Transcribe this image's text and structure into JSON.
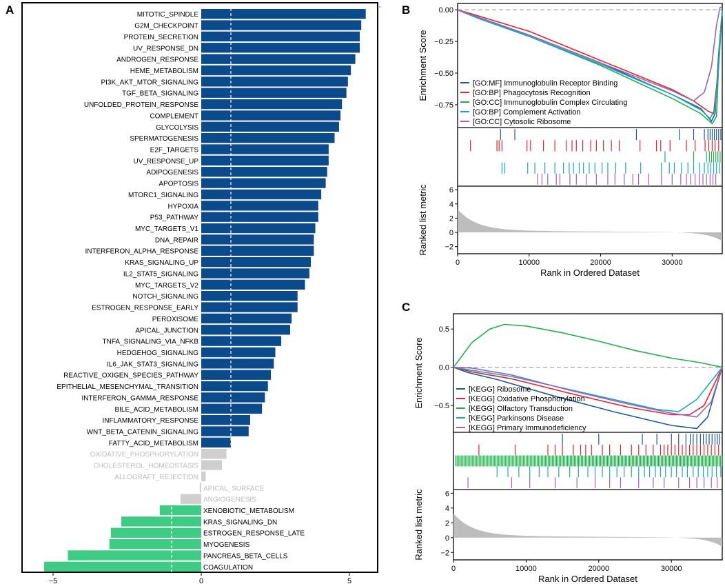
{
  "panels": {
    "a": "A",
    "b": "B",
    "c": "C"
  },
  "colors": {
    "up": "#0b4a8b",
    "down": "#3ecb83",
    "ns": "#cfcfcf",
    "ns_text": "#bdbdbd",
    "metric": "#bdbdbd"
  },
  "chart_data": [
    {
      "type": "bar",
      "id": "A",
      "orientation": "horizontal",
      "xlim": [
        -5.5,
        6
      ],
      "xticks": [
        -5,
        0,
        5
      ],
      "threshold_lines": [
        -1,
        1
      ],
      "categories": [
        "MITOTIC_SPINDLE",
        "G2M_CHECKPOINT",
        "PROTEIN_SECRETION",
        "UV_RESPONSE_DN",
        "ANDROGEN_RESPONSE",
        "HEME_METABOLISM",
        "PI3K_AKT_MTOR_SIGNALING",
        "TGF_BETA_SIGNALING",
        "UNFOLDED_PROTEIN_RESPONSE",
        "COMPLEMENT",
        "GLYCOLYSIS",
        "SPERMATOGENESIS",
        "E2F_TARGETS",
        "UV_RESPONSE_UP",
        "ADIPOGENESIS",
        "APOPTOSIS",
        "MTORC1_SIGNALING",
        "HYPOXIA",
        "P53_PATHWAY",
        "MYC_TARGETS_V1",
        "DNA_REPAIR",
        "INTERFERON_ALPHA_RESPONSE",
        "KRAS_SIGNALING_UP",
        "IL2_STAT5_SIGNALING",
        "MYC_TARGETS_V2",
        "NOTCH_SIGNALING",
        "ESTROGEN_RESPONSE_EARLY",
        "PEROXISOME",
        "APICAL_JUNCTION",
        "TNFA_SIGNALING_VIA_NFKB",
        "HEDGEHOG_SIGNALING",
        "IL6_JAK_STAT3_SIGNALING",
        "REACTIVE_OXIGEN_SPECIES_PATHWAY",
        "EPITHELIAL_MESENCHYMAL_TRANSITION",
        "INTERFERON_GAMMA_RESPONSE",
        "BILE_ACID_METABOLISM",
        "INFLAMMATORY_RESPONSE",
        "WNT_BETA_CATENIN_SIGNALING",
        "FATTY_ACID_METABOLISM",
        "OXIDATIVE_PHOSPHORYLATION",
        "CHOLESTEROL_HOMEOSTASIS",
        "ALLOGRAFT_REJECTION",
        "APICAL_SURFACE",
        "ANGIOGENESIS",
        "XENOBIOTIC_METABOLISM",
        "KRAS_SIGNALING_DN",
        "ESTROGEN_RESPONSE_LATE",
        "MYOGENESIS",
        "PANCREAS_BETA_CELLS",
        "COAGULATION"
      ],
      "values": [
        5.55,
        5.4,
        5.35,
        5.35,
        5.2,
        5.05,
        4.95,
        4.9,
        4.75,
        4.7,
        4.65,
        4.5,
        4.3,
        4.3,
        4.25,
        4.2,
        4.05,
        3.95,
        3.95,
        3.85,
        3.8,
        3.8,
        3.7,
        3.65,
        3.5,
        3.25,
        3.25,
        3.05,
        3.0,
        2.7,
        2.5,
        2.45,
        2.35,
        2.25,
        2.15,
        2.05,
        1.65,
        1.6,
        1.0,
        0.85,
        0.7,
        0.15,
        -0.05,
        -0.7,
        -1.4,
        -2.7,
        -3.05,
        -3.1,
        -4.5,
        -5.3
      ],
      "groups": [
        "up",
        "up",
        "up",
        "up",
        "up",
        "up",
        "up",
        "up",
        "up",
        "up",
        "up",
        "up",
        "up",
        "up",
        "up",
        "up",
        "up",
        "up",
        "up",
        "up",
        "up",
        "up",
        "up",
        "up",
        "up",
        "up",
        "up",
        "up",
        "up",
        "up",
        "up",
        "up",
        "up",
        "up",
        "up",
        "up",
        "up",
        "up",
        "up",
        "ns",
        "ns",
        "ns",
        "ns",
        "ns",
        "down",
        "down",
        "down",
        "down",
        "down",
        "down"
      ]
    },
    {
      "type": "line",
      "id": "B",
      "ylabel": "Enrichment Score",
      "xlabel": "Rank in Ordered Dataset",
      "metric_label": "Ranked list metric",
      "xlim": [
        0,
        37000
      ],
      "xticks": [
        0,
        10000,
        20000,
        30000
      ],
      "ylim": [
        -0.93,
        0.05
      ],
      "yticks": [
        "0.00",
        "-0.25",
        "-0.50",
        "-0.75"
      ],
      "metric_yticks": [
        6,
        4,
        2,
        0,
        -2
      ],
      "series": [
        {
          "name": "[GO:MF] Immunoglobulin Receptor Binding",
          "color": "#1a5b97",
          "points": [
            [
              0,
              0
            ],
            [
              3000,
              -0.07
            ],
            [
              10000,
              -0.2
            ],
            [
              20000,
              -0.42
            ],
            [
              30000,
              -0.67
            ],
            [
              34000,
              -0.78
            ],
            [
              35500,
              -0.88
            ],
            [
              36000,
              -0.82
            ],
            [
              36500,
              -0.35
            ],
            [
              37000,
              0
            ]
          ],
          "hits": [
            6000,
            8000,
            25000,
            31000,
            33000,
            34500,
            35000,
            35300,
            35600,
            35900,
            36200,
            36500,
            36800
          ]
        },
        {
          "name": "[GO:BP] Phagocytosis Recognition",
          "color": "#e8212b",
          "points": [
            [
              0,
              0
            ],
            [
              3000,
              -0.05
            ],
            [
              10000,
              -0.17
            ],
            [
              20000,
              -0.4
            ],
            [
              30000,
              -0.63
            ],
            [
              33000,
              -0.72
            ],
            [
              35000,
              -0.8
            ],
            [
              35800,
              -0.82
            ],
            [
              36400,
              -0.5
            ],
            [
              37000,
              0
            ]
          ],
          "hits": [
            1800,
            5500,
            5800,
            6200,
            9700,
            10200,
            12000,
            13600,
            15200,
            16000,
            16600,
            17500,
            18600,
            19400,
            20400,
            21500,
            22600,
            25500,
            27800,
            28400,
            29700,
            32000,
            33200,
            34600,
            35100,
            35600,
            36000,
            36500
          ]
        },
        {
          "name": "[GO:CC] Immunoglobulin Complex Circulating",
          "color": "#1db24b",
          "points": [
            [
              0,
              0
            ],
            [
              3000,
              -0.07
            ],
            [
              10000,
              -0.21
            ],
            [
              20000,
              -0.44
            ],
            [
              30000,
              -0.7
            ],
            [
              34000,
              -0.82
            ],
            [
              35600,
              -0.9
            ],
            [
              36200,
              -0.84
            ],
            [
              36600,
              -0.3
            ],
            [
              37000,
              0
            ]
          ],
          "hits": [
            29000,
            33000,
            34800,
            35200,
            35500,
            35800,
            36100,
            36400,
            36700
          ]
        },
        {
          "name": "[GO:BP] Complement Activation",
          "color": "#16a8c7",
          "points": [
            [
              0,
              0
            ],
            [
              3000,
              -0.07
            ],
            [
              10000,
              -0.21
            ],
            [
              20000,
              -0.43
            ],
            [
              30000,
              -0.67
            ],
            [
              34000,
              -0.79
            ],
            [
              35300,
              -0.86
            ],
            [
              36000,
              -0.78
            ],
            [
              36500,
              -0.45
            ],
            [
              37000,
              0
            ]
          ],
          "hits": [
            6200,
            6600,
            9800,
            10800,
            12200,
            13600,
            14800,
            15600,
            16200,
            17000,
            17600,
            18400,
            19200,
            20200,
            21000,
            22100,
            23500,
            25600,
            28500,
            29600,
            30300,
            31300,
            32200,
            33000,
            33800,
            34500,
            35000,
            35400,
            35800,
            36200,
            36600
          ]
        },
        {
          "name": "[GO:CC] Cytosolic Ribosome",
          "color": "#9d62b8",
          "points": [
            [
              0,
              0
            ],
            [
              3000,
              -0.06
            ],
            [
              10000,
              -0.2
            ],
            [
              20000,
              -0.42
            ],
            [
              30000,
              -0.64
            ],
            [
              33000,
              -0.72
            ],
            [
              34500,
              -0.65
            ],
            [
              35500,
              -0.45
            ],
            [
              36200,
              -0.12
            ],
            [
              36700,
              0.02
            ],
            [
              37000,
              0.02
            ]
          ],
          "hits": [
            11200,
            11800,
            12600,
            13800,
            14300,
            15700,
            16600,
            18000,
            19400,
            21000,
            22000,
            23300,
            24500,
            25300,
            26700,
            28500,
            30000,
            31200,
            32000,
            32600,
            33200,
            33800,
            34300,
            34800,
            35300,
            35700,
            36100
          ]
        }
      ]
    },
    {
      "type": "line",
      "id": "C",
      "ylabel": "Enrichment Score",
      "xlabel": "Rank in Ordered Dataset",
      "metric_label": "Ranked list metric",
      "xlim": [
        0,
        37000
      ],
      "xticks": [
        0,
        10000,
        20000,
        30000
      ],
      "ylim": [
        -0.85,
        0.7
      ],
      "yticks": [
        "0.5",
        "0.0",
        "-0.5"
      ],
      "metric_yticks": [
        6,
        4,
        2,
        0,
        -2
      ],
      "series": [
        {
          "name": "[KEGG] Ribosome",
          "color": "#1a5b97",
          "points": [
            [
              0,
              0
            ],
            [
              2000,
              -0.07
            ],
            [
              6000,
              -0.16
            ],
            [
              14000,
              -0.38
            ],
            [
              22000,
              -0.58
            ],
            [
              30000,
              -0.76
            ],
            [
              33500,
              -0.8
            ],
            [
              35000,
              -0.65
            ],
            [
              36000,
              -0.32
            ],
            [
              37000,
              0
            ]
          ],
          "hits": [
            15000,
            20000,
            26000,
            28000,
            30000,
            31000,
            32000,
            32600,
            33000,
            33500,
            34000,
            34400,
            34800,
            35200,
            35600,
            36000,
            36300,
            36600
          ]
        },
        {
          "name": "[KEGG] Oxidative Phosphorylation",
          "color": "#e8212b",
          "points": [
            [
              0,
              0
            ],
            [
              2500,
              -0.06
            ],
            [
              8000,
              -0.15
            ],
            [
              16000,
              -0.34
            ],
            [
              24000,
              -0.52
            ],
            [
              30000,
              -0.62
            ],
            [
              32500,
              -0.62
            ],
            [
              34500,
              -0.5
            ],
            [
              36000,
              -0.2
            ],
            [
              37000,
              0
            ]
          ],
          "hits": [
            3500,
            8500,
            13000,
            14000,
            15000,
            16500,
            17500,
            18200,
            19000,
            20500,
            21500,
            23000,
            24500,
            25500,
            26500,
            27500,
            28500,
            29000,
            29500,
            30000,
            30500,
            31000,
            31500,
            32000,
            32500,
            33000,
            33500,
            34000,
            34500,
            35000,
            35500,
            36000,
            36500
          ]
        },
        {
          "name": "[KEGG] Olfactory Transduction",
          "color": "#1db24b",
          "points": [
            [
              0,
              0
            ],
            [
              800,
              0.1
            ],
            [
              2500,
              0.32
            ],
            [
              5000,
              0.5
            ],
            [
              7000,
              0.56
            ],
            [
              10000,
              0.54
            ],
            [
              15000,
              0.45
            ],
            [
              20000,
              0.34
            ],
            [
              25000,
              0.22
            ],
            [
              30000,
              0.12
            ],
            [
              34000,
              0.06
            ],
            [
              37000,
              0
            ]
          ],
          "hits": "dense"
        },
        {
          "name": "[KEGG] Parkinsons Disease",
          "color": "#16a8c7",
          "points": [
            [
              0,
              0
            ],
            [
              2500,
              -0.04
            ],
            [
              8000,
              -0.12
            ],
            [
              15000,
              -0.27
            ],
            [
              22000,
              -0.42
            ],
            [
              28000,
              -0.55
            ],
            [
              31000,
              -0.58
            ],
            [
              33500,
              -0.42
            ],
            [
              35500,
              -0.18
            ],
            [
              37000,
              0
            ]
          ],
          "hits": [
            6000,
            7500,
            9000,
            10500,
            11800,
            13000,
            14500,
            16000,
            17200,
            18500,
            19500,
            20500,
            21500,
            22500,
            23500,
            24500,
            25500,
            26300,
            27000,
            27800,
            28500,
            29200,
            30000,
            30700,
            31500,
            32200,
            33000,
            33700,
            34400,
            35000,
            35600,
            36200,
            36800
          ]
        },
        {
          "name": "[KEGG] Primary Immunodeficiency",
          "color": "#9d62b8",
          "points": [
            [
              0,
              0
            ],
            [
              2500,
              -0.01
            ],
            [
              8000,
              -0.1
            ],
            [
              16000,
              -0.3
            ],
            [
              24000,
              -0.48
            ],
            [
              30000,
              -0.6
            ],
            [
              33500,
              -0.65
            ],
            [
              35500,
              -0.45
            ],
            [
              36500,
              -0.15
            ],
            [
              37000,
              0
            ]
          ],
          "hits": [
            2000,
            8000,
            10500,
            14000,
            17000,
            19500,
            21500,
            23000,
            25500,
            27500,
            29000,
            31000,
            32500,
            33500,
            34500,
            35500,
            36300
          ]
        }
      ]
    }
  ]
}
